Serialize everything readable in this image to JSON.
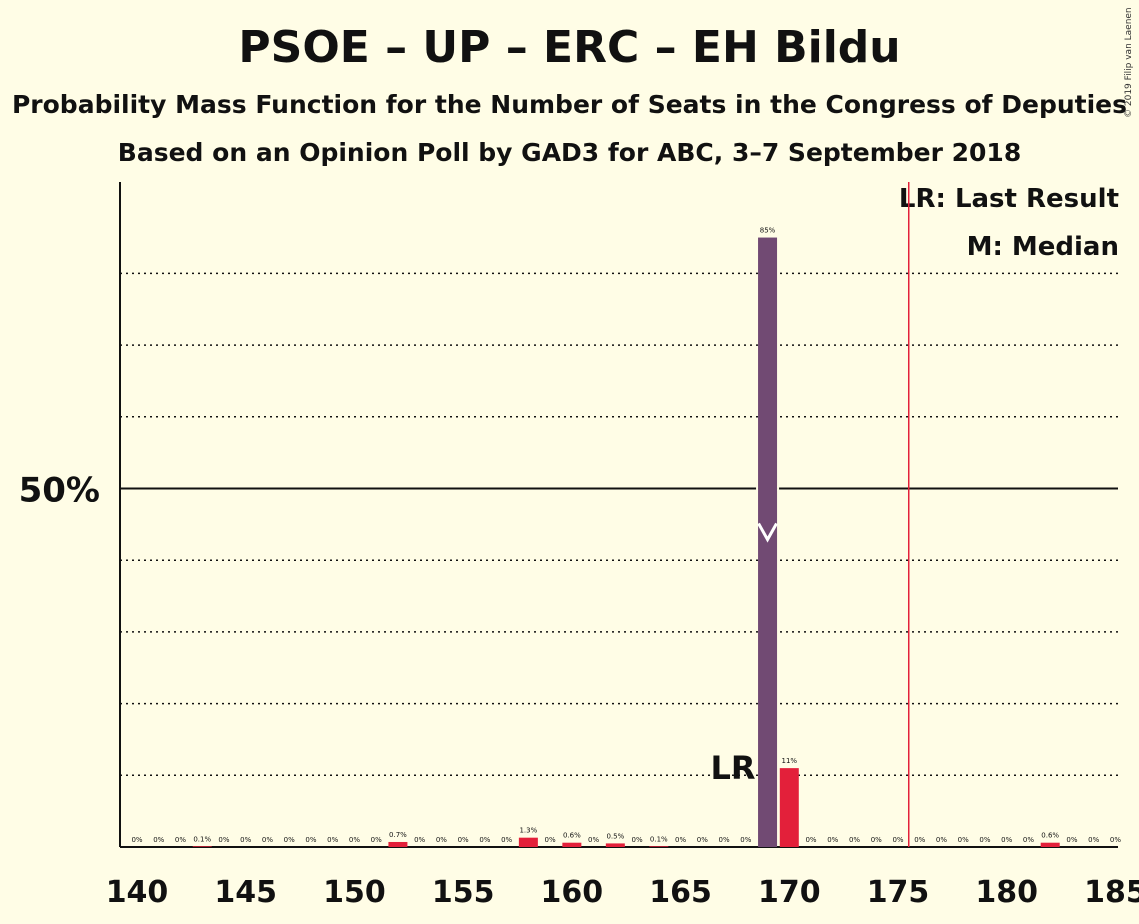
{
  "title": "PSOE – UP – ERC – EH Bildu",
  "subtitle": "Probability Mass Function for the Number of Seats in the Congress of Deputies",
  "subtitle2": "Based on an Opinion Poll by GAD3 for ABC, 3–7 September 2018",
  "copyright": "© 2019 Filip van Laenen",
  "legend": {
    "lr": "LR: Last Result",
    "median": "M: Median"
  },
  "colors": {
    "background": "#fffde6",
    "main_bar": "#714a73",
    "other_bar": "#e3203a",
    "majority_line": "#e3203a",
    "text": "#111111"
  },
  "chart_data": {
    "type": "bar",
    "x": [
      140,
      141,
      142,
      143,
      144,
      145,
      146,
      147,
      148,
      149,
      150,
      151,
      152,
      153,
      154,
      155,
      156,
      157,
      158,
      159,
      160,
      161,
      162,
      163,
      164,
      165,
      166,
      167,
      168,
      169,
      170,
      171,
      172,
      173,
      174,
      175,
      176,
      177,
      178,
      179,
      180,
      181,
      182,
      183,
      184,
      185
    ],
    "values": [
      0,
      0,
      0,
      0.1,
      0,
      0,
      0,
      0,
      0,
      0,
      0,
      0,
      0.7,
      0,
      0,
      0,
      0,
      0,
      1.3,
      0,
      0.6,
      0,
      0.5,
      0,
      0.1,
      0,
      0,
      0,
      0,
      85,
      11,
      0,
      0,
      0,
      0,
      0,
      0,
      0,
      0,
      0,
      0,
      0,
      0.6,
      0,
      0,
      0
    ],
    "labels": [
      "0%",
      "0%",
      "0%",
      "0.1%",
      "0%",
      "0%",
      "0%",
      "0%",
      "0%",
      "0%",
      "0%",
      "0%",
      "0.7%",
      "0%",
      "0%",
      "0%",
      "0%",
      "0%",
      "1.3%",
      "0%",
      "0.6%",
      "0%",
      "0.5%",
      "0%",
      "0.1%",
      "0%",
      "0%",
      "0%",
      "0%",
      "85%",
      "11%",
      "0%",
      "0%",
      "0%",
      "0%",
      "0%",
      "0%",
      "0%",
      "0%",
      "0%",
      "0%",
      "0%",
      "0.6%",
      "0%",
      "0%",
      "0%"
    ],
    "highlight_x": 169,
    "xlim": [
      140,
      185
    ],
    "ylim": [
      0,
      100
    ],
    "x_ticks": [
      140,
      145,
      150,
      155,
      160,
      165,
      170,
      175,
      180,
      185
    ],
    "y_label": "50%",
    "y_label_value": 50,
    "gridlines": [
      10,
      20,
      30,
      40,
      60,
      70,
      80
    ],
    "majority_x": 176,
    "last_result_x": 169,
    "last_result_label": "LR",
    "median_x": 169
  }
}
